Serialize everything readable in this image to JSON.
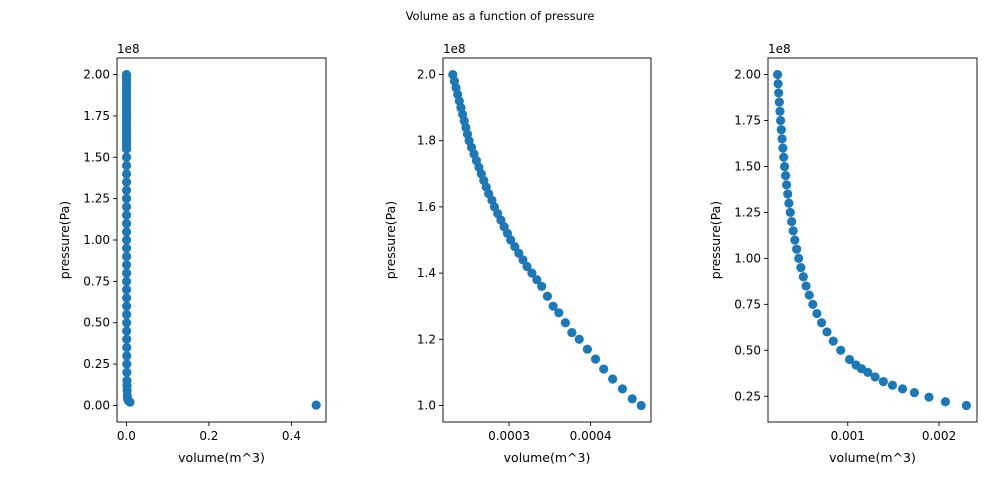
{
  "figure": {
    "suptitle": "Volume as a function of pressure"
  },
  "chart_data": [
    {
      "type": "scatter",
      "xlabel": "volume(m^3)",
      "ylabel": "pressure(Pa)",
      "y_offset_label": "1e8",
      "y_scale": 100000000,
      "xlim": [
        -0.0228,
        0.4838
      ],
      "ylim": [
        -10000000,
        210000000
      ],
      "xticks": [
        0.0,
        0.2,
        0.4
      ],
      "xtick_labels": [
        "0.0",
        "0.2",
        "0.4"
      ],
      "yticks": [
        0,
        25000000,
        50000000,
        75000000,
        100000000,
        125000000,
        150000000,
        175000000,
        200000000
      ],
      "ytick_labels": [
        "0.00",
        "0.25",
        "0.50",
        "0.75",
        "1.00",
        "1.25",
        "1.50",
        "1.75",
        "2.00"
      ],
      "color": "#1f77b4",
      "x": [
        0.000231,
        0.000232,
        0.000234,
        0.000236,
        0.000238,
        0.00024,
        0.000242,
        0.000244,
        0.000246,
        0.000249,
        0.000252,
        0.000254,
        0.000257,
        0.00026,
        0.000263,
        0.000267,
        0.00027,
        0.000274,
        0.000278,
        0.000282,
        0.000286,
        0.000291,
        0.000296,
        0.000301,
        0.000307,
        0.000313,
        0.00032,
        0.000327,
        0.000334,
        0.000342,
        0.000351,
        0.000361,
        0.000371,
        0.000382,
        0.000395,
        0.000408,
        0.000423,
        0.00044,
        0.000458,
        0.000479,
        0.000502,
        0.000528,
        0.000558,
        0.000592,
        0.000632,
        0.000678,
        0.000733,
        0.000799,
        0.000878,
        0.000975,
        0.0011,
        0.00125,
        0.00146,
        0.00175,
        0.00219,
        0.00292,
        0.00438,
        0.00877,
        0.46
      ],
      "y": [
        200000000,
        199000000,
        197000000,
        195000000,
        193000000,
        191000000,
        189000000,
        187000000,
        185000000,
        183000000,
        181000000,
        179000000,
        177000000,
        175000000,
        173000000,
        171000000,
        169000000,
        167000000,
        165000000,
        163000000,
        161000000,
        159000000,
        157000000,
        155000000,
        150000000,
        145000000,
        140000000,
        135000000,
        130000000,
        125000000,
        120000000,
        115000000,
        110000000,
        105000000,
        100000000,
        95000000,
        90000000,
        85000000,
        80000000,
        75000000,
        70000000,
        65000000,
        60000000,
        55000000,
        50000000,
        45000000,
        40000000,
        35000000,
        30000000,
        25000000,
        20000000,
        15000000,
        12000000,
        9000000,
        6000000,
        4000000,
        3000000,
        2000000,
        200000
      ]
    },
    {
      "type": "scatter",
      "xlabel": "volume(m^3)",
      "ylabel": "pressure(Pa)",
      "y_offset_label": "1e8",
      "y_scale": 100000000,
      "xlim": [
        0.000219,
        0.000474
      ],
      "ylim": [
        95000000,
        205000000
      ],
      "xticks": [
        0.0003,
        0.0004
      ],
      "xtick_labels": [
        "0.0003",
        "0.0004"
      ],
      "yticks": [
        100000000,
        120000000,
        140000000,
        160000000,
        180000000,
        200000000
      ],
      "ytick_labels": [
        "1.0",
        "1.2",
        "1.4",
        "1.6",
        "1.8",
        "2.0"
      ],
      "color": "#1f77b4",
      "x": [
        0.000231,
        0.000233,
        0.000235,
        0.000237,
        0.000239,
        0.000241,
        0.000243,
        0.000245,
        0.000247,
        0.000249,
        0.000251,
        0.000254,
        0.000257,
        0.00026,
        0.000263,
        0.000266,
        0.000269,
        0.000272,
        0.000275,
        0.000279,
        0.000282,
        0.000286,
        0.00029,
        0.000294,
        0.000298,
        0.000302,
        0.000307,
        0.000312,
        0.000317,
        0.000322,
        0.000328,
        0.000334,
        0.00034,
        0.000347,
        0.000354,
        0.000361,
        0.000369,
        0.000377,
        0.000386,
        0.000396,
        0.000406,
        0.000416,
        0.000427,
        0.000439,
        0.000451,
        0.000462
      ],
      "y": [
        200000000,
        198000000,
        196000000,
        194000000,
        192000000,
        190000000,
        188000000,
        186000000,
        184000000,
        182000000,
        180000000,
        178000000,
        176000000,
        174000000,
        172000000,
        170000000,
        168000000,
        166000000,
        164000000,
        162000000,
        160000000,
        158000000,
        156000000,
        154000000,
        152000000,
        150000000,
        148000000,
        146000000,
        144000000,
        142000000,
        140000000,
        138000000,
        136000000,
        133000000,
        130000000,
        128000000,
        125000000,
        122000000,
        120000000,
        117000000,
        114000000,
        111000000,
        108000000,
        105000000,
        102000000,
        100000000
      ]
    },
    {
      "type": "scatter",
      "xlabel": "volume(m^3)",
      "ylabel": "pressure(Pa)",
      "y_offset_label": "1e8",
      "y_scale": 100000000,
      "xlim": [
        0.000126,
        0.002416
      ],
      "ylim": [
        11000000,
        209000000
      ],
      "xticks": [
        0.001,
        0.002
      ],
      "xtick_labels": [
        "0.001",
        "0.002"
      ],
      "yticks": [
        25000000,
        50000000,
        75000000,
        100000000,
        125000000,
        150000000,
        175000000,
        200000000
      ],
      "ytick_labels": [
        "0.25",
        "0.50",
        "0.75",
        "1.00",
        "1.25",
        "1.50",
        "1.75",
        "2.00"
      ],
      "color": "#1f77b4",
      "x": [
        0.000231,
        0.000237,
        0.000243,
        0.00025,
        0.000257,
        0.000264,
        0.000272,
        0.00028,
        0.000289,
        0.000298,
        0.000308,
        0.000319,
        0.00033,
        0.000342,
        0.000355,
        0.00037,
        0.000385,
        0.000402,
        0.00042,
        0.00044,
        0.000462,
        0.000486,
        0.000513,
        0.000543,
        0.000578,
        0.000617,
        0.000662,
        0.000713,
        0.000772,
        0.000841,
        0.000923,
        0.00102,
        0.00109,
        0.00115,
        0.00122,
        0.0013,
        0.00139,
        0.00149,
        0.0016,
        0.00173,
        0.00189,
        0.00207,
        0.0023
      ],
      "y": [
        200000000,
        195000000,
        190000000,
        185000000,
        180000000,
        175000000,
        170000000,
        165000000,
        160000000,
        155000000,
        150000000,
        145000000,
        140000000,
        135000000,
        130000000,
        125000000,
        120000000,
        115000000,
        110000000,
        105000000,
        100000000,
        95000000,
        90000000,
        85000000,
        80000000,
        75000000,
        70000000,
        65000000,
        60000000,
        55000000,
        50000000,
        45000000,
        42000000,
        40000000,
        38000000,
        35500000,
        33000000,
        31000000,
        29000000,
        27000000,
        24500000,
        22000000,
        20000000
      ]
    }
  ]
}
